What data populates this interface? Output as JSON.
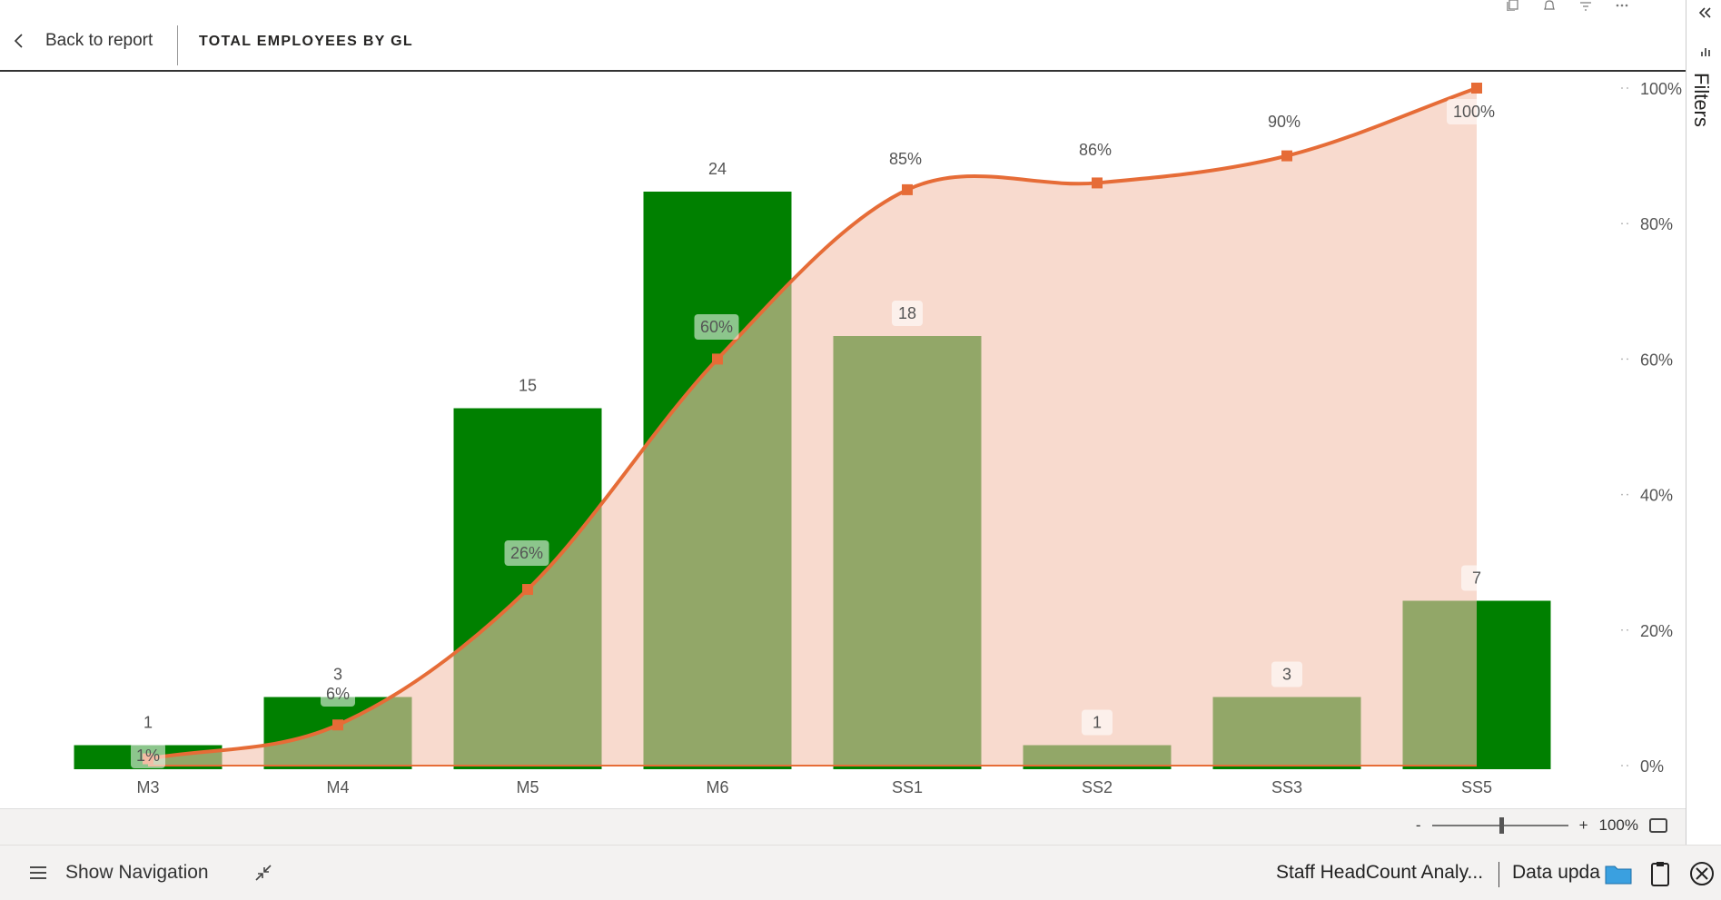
{
  "header": {
    "back_label": "Back to report",
    "title": "TOTAL EMPLOYEES BY GL"
  },
  "filters_pane": {
    "label": "Filters"
  },
  "chart_data": {
    "type": "bar",
    "categories": [
      "M3",
      "M4",
      "M5",
      "M6",
      "SS1",
      "SS2",
      "SS3",
      "SS5"
    ],
    "series": [
      {
        "values": [
          1,
          3,
          15,
          24,
          18,
          1,
          3,
          7
        ],
        "color": "#008000"
      },
      {
        "values": [
          1,
          6,
          26,
          60,
          85,
          86,
          90,
          100
        ],
        "color": "#E66C37"
      }
    ],
    "bar_labels": [
      "1",
      "3",
      "15",
      "24",
      "18",
      "1",
      "3",
      "7"
    ],
    "line_labels": [
      "1%",
      "6%",
      "26%",
      "60%",
      "85%",
      "86%",
      "90%",
      "100%"
    ],
    "y_left_range": [
      0,
      25
    ],
    "y_right_ticks": [
      "0%",
      "20%",
      "40%",
      "60%",
      "80%",
      "100%"
    ],
    "y_right_range": [
      0,
      100
    ],
    "grid": false,
    "area_fill": "#F4C2AD",
    "line_color": "#E66C37",
    "bar_color": "#008000"
  },
  "zoom": {
    "minus": "-",
    "plus": "+",
    "level": "100%"
  },
  "bottom_bar": {
    "show_navigation": "Show Navigation",
    "report_name": "Staff HeadCount Analy...",
    "data_updated": "Data upda"
  },
  "icons": {
    "back": "chevron-left-icon",
    "hamburger": "hamburger-icon",
    "collapse": "collapse-arrows-icon",
    "folder": "folder-icon",
    "clipboard": "clipboard-icon",
    "close": "close-circle-icon"
  }
}
